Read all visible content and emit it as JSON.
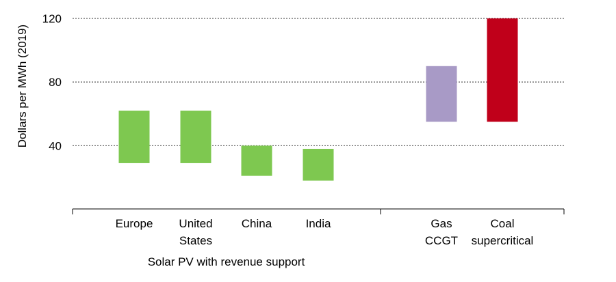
{
  "chart_data": {
    "type": "bar",
    "subtype": "floating-range",
    "ylabel": "Dollars per MWh (2019)",
    "ylim": [
      0,
      120
    ],
    "yticks": [
      40,
      80,
      120
    ],
    "grid": "dotted horizontal at ticks",
    "categories": [
      [
        "Europe"
      ],
      [
        "United",
        "States"
      ],
      [
        "China"
      ],
      [
        "India"
      ],
      [
        "Gas",
        "CCGT"
      ],
      [
        "Coal",
        "supercritical"
      ]
    ],
    "ranges": [
      {
        "low": 29,
        "high": 62,
        "color": "#7ec850"
      },
      {
        "low": 29,
        "high": 62,
        "color": "#7ec850"
      },
      {
        "low": 21,
        "high": 40,
        "color": "#7ec850"
      },
      {
        "low": 18,
        "high": 38,
        "color": "#7ec850"
      },
      {
        "low": 55,
        "high": 90,
        "color": "#a89ac6"
      },
      {
        "low": 55,
        "high": 120,
        "color": "#c0001a"
      }
    ],
    "group_labels": [
      {
        "text": "Solar PV with revenue support",
        "covers": [
          0,
          1,
          2,
          3
        ]
      }
    ]
  }
}
